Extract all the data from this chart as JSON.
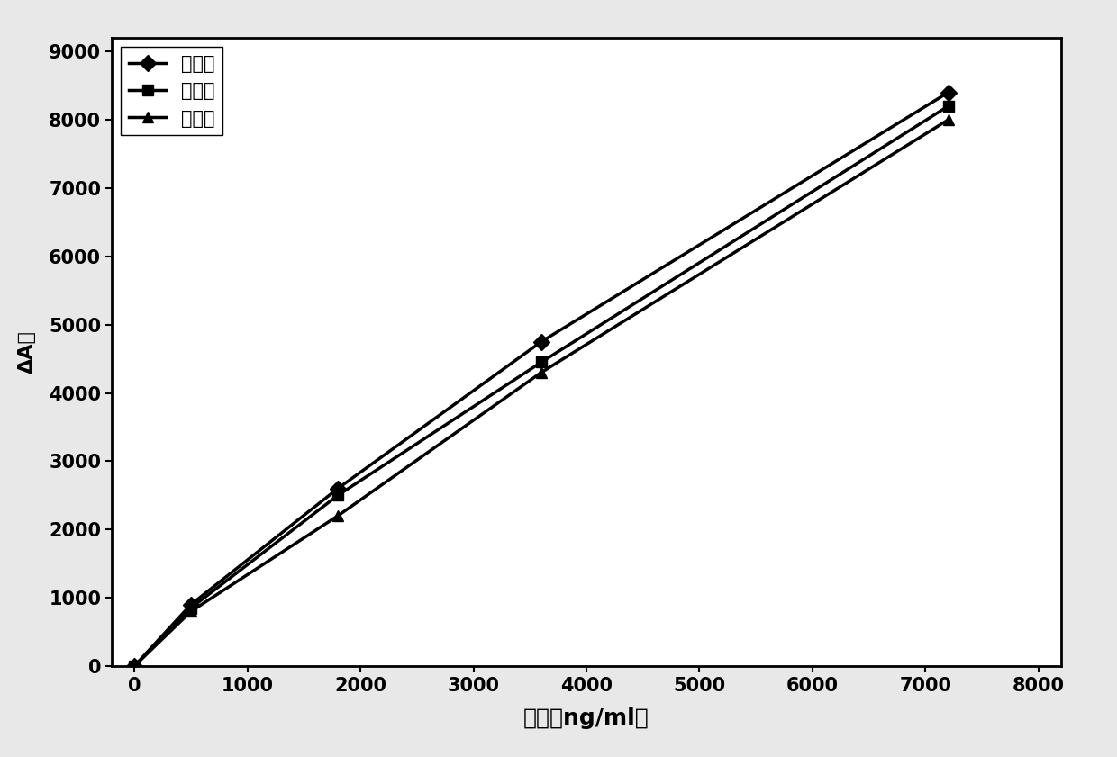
{
  "series": [
    {
      "label": "配比一",
      "x": [
        0,
        500,
        1800,
        3600,
        7200
      ],
      "y": [
        0,
        900,
        2600,
        4750,
        8400
      ],
      "marker": "D",
      "color": "#000000",
      "linewidth": 2.5,
      "markersize": 9
    },
    {
      "label": "配比二",
      "x": [
        0,
        500,
        1800,
        3600,
        7200
      ],
      "y": [
        0,
        850,
        2500,
        4450,
        8200
      ],
      "marker": "s",
      "color": "#000000",
      "linewidth": 2.5,
      "markersize": 9
    },
    {
      "label": "配比三",
      "x": [
        0,
        500,
        1800,
        3600,
        7200
      ],
      "y": [
        0,
        800,
        2200,
        4300,
        8000
      ],
      "marker": "^",
      "color": "#000000",
      "linewidth": 2.5,
      "markersize": 9
    }
  ],
  "xlabel": "浓度（ng/ml）",
  "ylabel": "ΔA値",
  "xlim": [
    -200,
    8200
  ],
  "ylim": [
    0,
    9200
  ],
  "xticks": [
    0,
    1000,
    2000,
    3000,
    4000,
    5000,
    6000,
    7000,
    8000
  ],
  "yticks": [
    0,
    1000,
    2000,
    3000,
    4000,
    5000,
    6000,
    7000,
    8000,
    9000
  ],
  "xlabel_fontsize": 18,
  "ylabel_fontsize": 16,
  "tick_fontsize": 15,
  "legend_fontsize": 15,
  "background_color": "#ffffff",
  "figure_background": "#e8e8e8"
}
